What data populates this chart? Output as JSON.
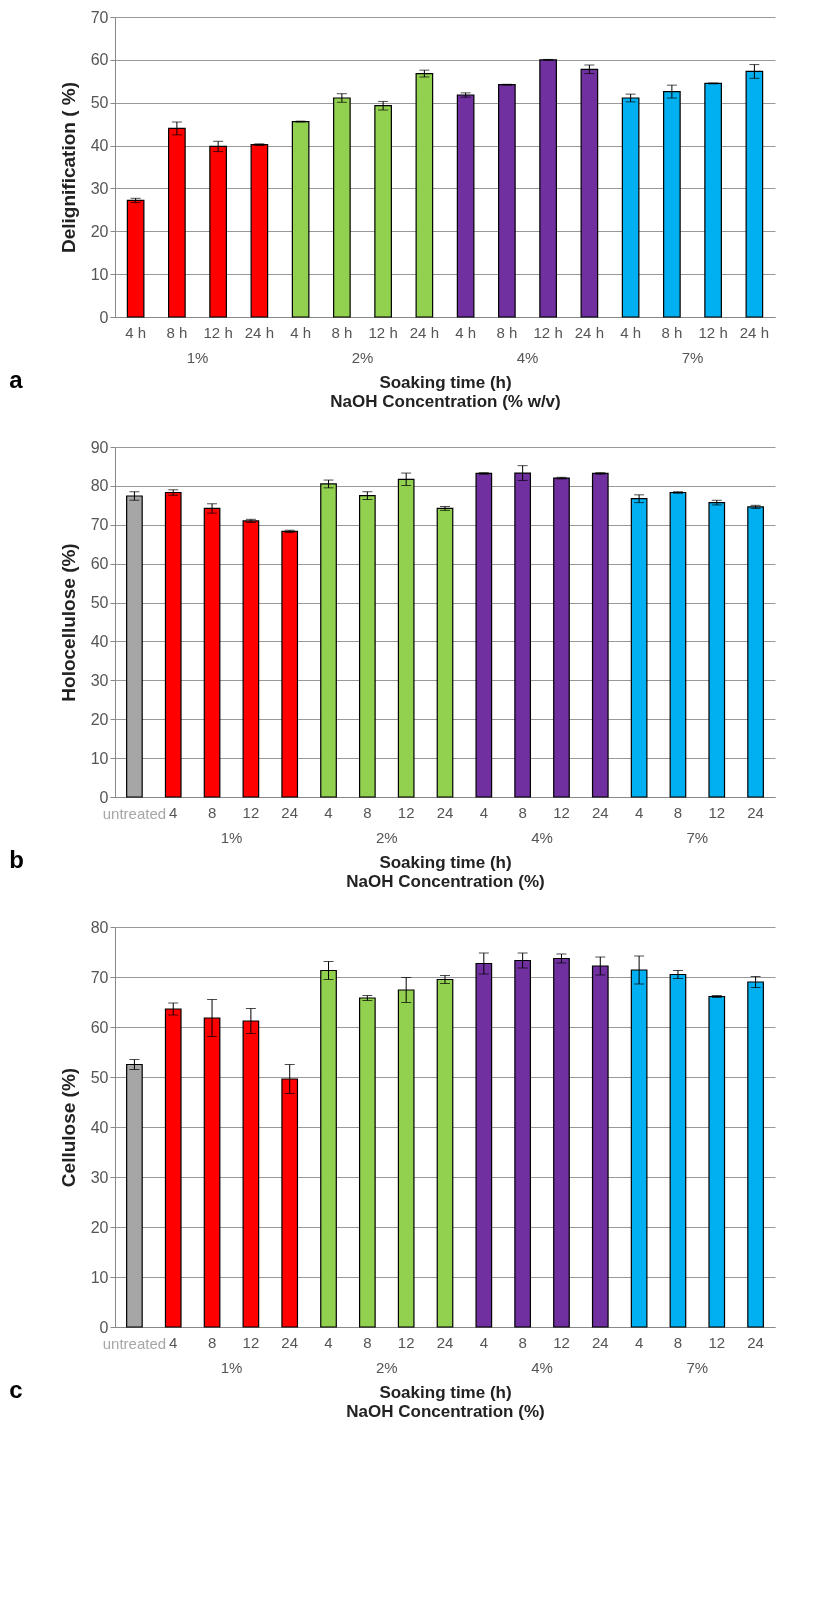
{
  "chart_data": [
    {
      "type": "bar",
      "title": "a",
      "ylabel": "Delignification ( %)",
      "xlabel": "Soaking time (h)",
      "annotations": [
        "NaOH Concentration (% w/v)"
      ],
      "categories": [
        "4 h",
        "8 h",
        "12 h",
        "24 h",
        "4 h",
        "8 h",
        "12 h",
        "24 h",
        "4 h",
        "8 h",
        "12 h",
        "24 h",
        "4 h",
        "8 h",
        "12 h",
        "24 h"
      ],
      "series": [
        {
          "name": "1%",
          "color": "#ff0000",
          "values": [
            27.2,
            44,
            39.8,
            40.2,
            null,
            null,
            null,
            null,
            null,
            null,
            null,
            null,
            null,
            null,
            null,
            null
          ],
          "errors": [
            0.5,
            1.5,
            1.2,
            0.2,
            null,
            null,
            null,
            null,
            null,
            null,
            null,
            null,
            null,
            null,
            null,
            null
          ]
        },
        {
          "name": "2%",
          "color": "#92d050",
          "values": [
            null,
            null,
            null,
            null,
            45.6,
            51.1,
            49.3,
            56.8,
            null,
            null,
            null,
            null,
            null,
            null,
            null,
            null
          ],
          "errors": [
            null,
            null,
            null,
            null,
            0.1,
            1,
            1,
            0.8,
            null,
            null,
            null,
            null,
            null,
            null,
            null,
            null
          ]
        },
        {
          "name": "4%",
          "color": "#7030a0",
          "values": [
            null,
            null,
            null,
            null,
            null,
            null,
            null,
            null,
            51.8,
            54.2,
            60,
            57.8,
            null,
            null,
            null,
            null
          ],
          "errors": [
            null,
            null,
            null,
            null,
            null,
            null,
            null,
            null,
            0.5,
            0.1,
            0.1,
            1,
            null,
            null,
            null,
            null
          ]
        },
        {
          "name": "7%",
          "color": "#00b0f0",
          "values": [
            null,
            null,
            null,
            null,
            null,
            null,
            null,
            null,
            null,
            null,
            null,
            null,
            51.1,
            52.6,
            54.5,
            57.3
          ],
          "errors": [
            null,
            null,
            null,
            null,
            null,
            null,
            null,
            null,
            null,
            null,
            null,
            null,
            0.9,
            1.5,
            0.1,
            1.6
          ]
        }
      ],
      "ylim": [
        0,
        70
      ],
      "yticks": [
        0,
        10,
        20,
        30,
        40,
        50,
        60,
        70
      ],
      "grid": "y"
    },
    {
      "type": "bar",
      "title": "b",
      "ylabel": "Holocellulose (%)",
      "xlabel": "Soaking time (h)",
      "annotations": [
        "NaOH Concentration (%)"
      ],
      "categories": [
        null,
        "4",
        "8",
        "12",
        "24",
        "4",
        "8",
        "12",
        "24",
        "4",
        "8",
        "12",
        "24",
        "4",
        "8",
        "12",
        "24"
      ],
      "series": [
        {
          "name": "untreated",
          "color": "#a6a6a6",
          "values": [
            77.4,
            null,
            null,
            null,
            null,
            null,
            null,
            null,
            null,
            null,
            null,
            null,
            null,
            null,
            null,
            null,
            null
          ],
          "errors": [
            1.1,
            null,
            null,
            null,
            null,
            null,
            null,
            null,
            null,
            null,
            null,
            null,
            null,
            null,
            null,
            null,
            null
          ]
        },
        {
          "name": "1%",
          "color": "#ff0000",
          "values": [
            null,
            78.3,
            74.2,
            71,
            68.3,
            null,
            null,
            null,
            null,
            null,
            null,
            null,
            null,
            null,
            null,
            null,
            null
          ],
          "errors": [
            null,
            0.7,
            1.2,
            0.4,
            0.3,
            null,
            null,
            null,
            null,
            null,
            null,
            null,
            null,
            null,
            null,
            null,
            null
          ]
        },
        {
          "name": "2%",
          "color": "#92d050",
          "values": [
            null,
            null,
            null,
            null,
            null,
            80.5,
            77.5,
            81.7,
            74.2,
            null,
            null,
            null,
            null,
            null,
            null,
            null,
            null
          ],
          "errors": [
            null,
            null,
            null,
            null,
            null,
            1,
            1,
            1.6,
            0.5,
            null,
            null,
            null,
            null,
            null,
            null,
            null,
            null
          ]
        },
        {
          "name": "4%",
          "color": "#7030a0",
          "values": [
            null,
            null,
            null,
            null,
            null,
            null,
            null,
            null,
            null,
            83.2,
            83.3,
            82,
            83.2,
            null,
            null,
            null,
            null
          ],
          "errors": [
            null,
            null,
            null,
            null,
            null,
            null,
            null,
            null,
            null,
            0.2,
            1.9,
            0.2,
            0.2,
            null,
            null,
            null,
            null
          ]
        },
        {
          "name": "7%",
          "color": "#00b0f0",
          "values": [
            null,
            null,
            null,
            null,
            null,
            null,
            null,
            null,
            null,
            null,
            null,
            null,
            null,
            76.7,
            78.3,
            75.7,
            74.6
          ],
          "errors": [
            null,
            null,
            null,
            null,
            null,
            null,
            null,
            null,
            null,
            null,
            null,
            null,
            null,
            1,
            0.2,
            0.6,
            0.4
          ]
        }
      ],
      "ylim": [
        0,
        90
      ],
      "yticks": [
        0,
        10,
        20,
        30,
        40,
        50,
        60,
        70,
        80,
        90
      ],
      "grid": "y"
    },
    {
      "type": "bar",
      "title": "c",
      "ylabel": "Cellulose (%)",
      "xlabel": "Soaking time (h)",
      "annotations": [
        "NaOH Concentration (%)"
      ],
      "categories": [
        null,
        "4",
        "8",
        "12",
        "24",
        "4",
        "8",
        "12",
        "24",
        "4",
        "8",
        "12",
        "24",
        "4",
        "8",
        "12",
        "24"
      ],
      "series": [
        {
          "name": "untreated",
          "color": "#a6a6a6",
          "values": [
            52.5,
            null,
            null,
            null,
            null,
            null,
            null,
            null,
            null,
            null,
            null,
            null,
            null,
            null,
            null,
            null,
            null
          ],
          "errors": [
            1,
            null,
            null,
            null,
            null,
            null,
            null,
            null,
            null,
            null,
            null,
            null,
            null,
            null,
            null,
            null,
            null
          ]
        },
        {
          "name": "1%",
          "color": "#ff0000",
          "values": [
            null,
            63.6,
            61.8,
            61.2,
            49.6,
            null,
            null,
            null,
            null,
            null,
            null,
            null,
            null,
            null,
            null,
            null,
            null
          ],
          "errors": [
            null,
            1.2,
            3.7,
            2.5,
            2.9,
            null,
            null,
            null,
            null,
            null,
            null,
            null,
            null,
            null,
            null,
            null,
            null
          ]
        },
        {
          "name": "2%",
          "color": "#92d050",
          "values": [
            null,
            null,
            null,
            null,
            null,
            71.3,
            65.8,
            67.4,
            69.5,
            null,
            null,
            null,
            null,
            null,
            null,
            null,
            null
          ],
          "errors": [
            null,
            null,
            null,
            null,
            null,
            1.8,
            0.5,
            2.5,
            0.8,
            null,
            null,
            null,
            null,
            null,
            null,
            null,
            null
          ]
        },
        {
          "name": "4%",
          "color": "#7030a0",
          "values": [
            null,
            null,
            null,
            null,
            null,
            null,
            null,
            null,
            null,
            72.7,
            73.3,
            73.7,
            72.2,
            null,
            null,
            null,
            null
          ],
          "errors": [
            null,
            null,
            null,
            null,
            null,
            null,
            null,
            null,
            null,
            2.1,
            1.5,
            0.9,
            1.8,
            null,
            null,
            null,
            null
          ]
        },
        {
          "name": "7%",
          "color": "#00b0f0",
          "values": [
            null,
            null,
            null,
            null,
            null,
            null,
            null,
            null,
            null,
            null,
            null,
            null,
            null,
            71.4,
            70.5,
            66.1,
            69
          ],
          "errors": [
            null,
            null,
            null,
            null,
            null,
            null,
            null,
            null,
            null,
            null,
            null,
            null,
            null,
            2.8,
            0.8,
            0.2,
            1.1
          ]
        }
      ],
      "ylim": [
        0,
        80
      ],
      "yticks": [
        0,
        10,
        20,
        30,
        40,
        50,
        60,
        70,
        80
      ],
      "grid": "y"
    }
  ]
}
